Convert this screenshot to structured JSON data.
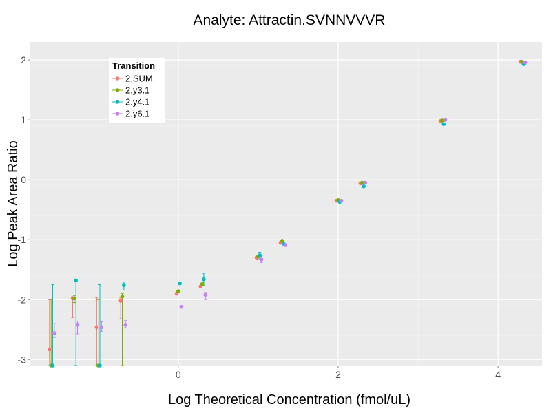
{
  "chart_data": {
    "type": "scatter",
    "title": "Analyte: Attractin.SVNNVVVR",
    "xlabel": "Log Theoretical Concentration (fmol/uL)",
    "ylabel": "Log Peak Area Ratio",
    "xlim": [
      -1.85,
      4.55
    ],
    "ylim": [
      -3.1,
      2.3
    ],
    "x_ticks": [
      0,
      2,
      4
    ],
    "y_ticks": [
      -3,
      -2,
      -1,
      0,
      1,
      2
    ],
    "grid": true,
    "legend": {
      "title": "Transition",
      "position": "top-left"
    },
    "series": [
      {
        "name": "2.SUM.",
        "color": "#F8766D",
        "points": [
          {
            "x": -1.61,
            "y": -2.83,
            "lo": -3.1,
            "hi": -2.0
          },
          {
            "x": -1.32,
            "y": -1.98,
            "lo": -2.3,
            "hi": -1.95
          },
          {
            "x": -1.02,
            "y": -2.46,
            "lo": -3.1,
            "hi": -1.97
          },
          {
            "x": -0.72,
            "y": -2.02,
            "lo": -2.32,
            "hi": -1.97
          },
          {
            "x": -0.02,
            "y": -1.9
          },
          {
            "x": 0.28,
            "y": -1.78
          },
          {
            "x": 0.98,
            "y": -1.3
          },
          {
            "x": 1.28,
            "y": -1.05
          },
          {
            "x": 1.98,
            "y": -0.35
          },
          {
            "x": 2.28,
            "y": -0.06
          },
          {
            "x": 3.28,
            "y": 0.98
          },
          {
            "x": 4.28,
            "y": 1.97
          }
        ]
      },
      {
        "name": "2.y3.1",
        "color": "#7CAE00",
        "points": [
          {
            "x": -1.59,
            "y": -3.1,
            "lo": -3.1,
            "hi": -2.0
          },
          {
            "x": -1.3,
            "y": -1.98,
            "lo": -2.05,
            "hi": -1.93
          },
          {
            "x": -1.0,
            "y": -3.1,
            "lo": -3.1,
            "hi": -2.0
          },
          {
            "x": -0.7,
            "y": -1.95,
            "lo": -3.1,
            "hi": -1.9
          },
          {
            "x": 0.0,
            "y": -1.86
          },
          {
            "x": 0.3,
            "y": -1.74
          },
          {
            "x": 1.0,
            "y": -1.28
          },
          {
            "x": 1.3,
            "y": -1.02
          },
          {
            "x": 2.0,
            "y": -0.34
          },
          {
            "x": 2.3,
            "y": -0.05
          },
          {
            "x": 3.3,
            "y": 0.99
          },
          {
            "x": 4.3,
            "y": 1.97
          }
        ]
      },
      {
        "name": "2.y4.1",
        "color": "#00BFC4",
        "points": [
          {
            "x": -1.57,
            "y": -3.1,
            "lo": -3.1,
            "hi": -1.75
          },
          {
            "x": -1.28,
            "y": -1.68,
            "lo": -3.1,
            "hi": -1.68
          },
          {
            "x": -0.98,
            "y": -3.1,
            "lo": -3.1,
            "hi": -1.75
          },
          {
            "x": -0.68,
            "y": -1.76,
            "lo": -1.84,
            "hi": -1.72
          },
          {
            "x": 0.02,
            "y": -1.73
          },
          {
            "x": 0.32,
            "y": -1.66,
            "lo": -1.76,
            "hi": -1.56
          },
          {
            "x": 1.02,
            "y": -1.26,
            "lo": -1.32,
            "hi": -1.21
          },
          {
            "x": 1.32,
            "y": -1.07
          },
          {
            "x": 2.02,
            "y": -0.37
          },
          {
            "x": 2.32,
            "y": -0.11
          },
          {
            "x": 3.32,
            "y": 0.93
          },
          {
            "x": 4.32,
            "y": 1.93
          }
        ]
      },
      {
        "name": "2.y6.1",
        "color": "#C77CFF",
        "points": [
          {
            "x": -1.55,
            "y": -2.56,
            "lo": -2.63,
            "hi": -2.4
          },
          {
            "x": -1.26,
            "y": -2.42,
            "lo": -2.57,
            "hi": -2.36
          },
          {
            "x": -0.96,
            "y": -2.46,
            "lo": -2.53,
            "hi": -2.37
          },
          {
            "x": -0.66,
            "y": -2.42,
            "lo": -2.47,
            "hi": -2.35
          },
          {
            "x": 0.04,
            "y": -2.12
          },
          {
            "x": 0.34,
            "y": -1.92,
            "lo": -2.0,
            "hi": -1.88
          },
          {
            "x": 1.04,
            "y": -1.33,
            "lo": -1.38,
            "hi": -1.27
          },
          {
            "x": 1.34,
            "y": -1.09
          },
          {
            "x": 2.04,
            "y": -0.35
          },
          {
            "x": 2.34,
            "y": -0.05
          },
          {
            "x": 3.34,
            "y": 1.0
          },
          {
            "x": 4.34,
            "y": 1.96
          }
        ]
      }
    ]
  }
}
